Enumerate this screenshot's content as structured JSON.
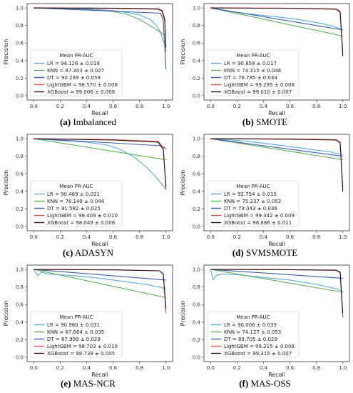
{
  "colors": {
    "LR": "#5aa9d6",
    "KNN": "#5cae5c",
    "DT": "#3b5ba5",
    "LightGBM": "#d9534f",
    "XGBoost": "#2a1010"
  },
  "chart_data": [
    {
      "type": "line",
      "caption_letter": "(a)",
      "caption_text": "Imbalanced",
      "xlabel": "Recall",
      "ylabel": "Precision",
      "xlim": [
        -0.05,
        1.05
      ],
      "ylim": [
        -0.05,
        1.05
      ],
      "xticks": [
        "0.0",
        "0.2",
        "0.4",
        "0.6",
        "0.8",
        "1.0"
      ],
      "yticks": [
        "0.0",
        "0.2",
        "0.4",
        "0.6",
        "0.8",
        "1.0"
      ],
      "legend_title": "Mean PR-AUC",
      "legend_position": "lower-left",
      "series": [
        {
          "name": "LR",
          "label": "LR = 94.126 ± 0.018",
          "x": [
            0,
            0.2,
            0.4,
            0.6,
            0.7,
            0.8,
            0.88,
            0.93,
            0.96,
            0.98,
            1.0
          ],
          "y": [
            1.0,
            0.995,
            0.99,
            0.97,
            0.95,
            0.92,
            0.87,
            0.8,
            0.72,
            0.62,
            0.55
          ]
        },
        {
          "name": "KNN",
          "label": "KNN = 87.303 ± 0.027",
          "x": [
            0,
            0.2,
            0.4,
            0.6,
            0.7,
            0.8,
            0.9,
            0.96,
            1.0
          ],
          "y": [
            1.0,
            0.99,
            0.98,
            0.96,
            0.93,
            0.87,
            0.78,
            0.72,
            0.68
          ]
        },
        {
          "name": "DT",
          "label": "DT = 90.239 ± 0.059",
          "x": [
            0,
            0.5,
            0.96,
            0.98,
            1.0
          ],
          "y": [
            1.0,
            0.97,
            0.94,
            0.85,
            0.3
          ]
        },
        {
          "name": "LightGBM",
          "label": "LightGBM = 98.570 ± 0.008",
          "x": [
            0,
            0.6,
            0.94,
            0.97,
            0.99,
            1.0
          ],
          "y": [
            1.0,
            0.995,
            0.985,
            0.96,
            0.85,
            0.5
          ]
        },
        {
          "name": "XGBoost",
          "label": "XGBoost = 99.006 ± 0.008",
          "x": [
            0,
            0.6,
            0.94,
            0.97,
            0.99,
            1.0
          ],
          "y": [
            1.0,
            0.998,
            0.99,
            0.97,
            0.88,
            0.55
          ]
        }
      ]
    },
    {
      "type": "line",
      "caption_letter": "(b)",
      "caption_text": "SMOTE",
      "xlabel": "Recall",
      "ylabel": "Precision",
      "xlim": [
        -0.05,
        1.05
      ],
      "ylim": [
        -0.05,
        1.05
      ],
      "xticks": [
        "0.0",
        "0.2",
        "0.4",
        "0.6",
        "0.8",
        "1.0"
      ],
      "yticks": [
        "0.0",
        "0.2",
        "0.4",
        "0.6",
        "0.8",
        "1.0"
      ],
      "legend_title": "Mean PR-AUC",
      "legend_position": "lower-left",
      "series": [
        {
          "name": "LR",
          "label": "LR = 90.858 ± 0.017",
          "x": [
            0,
            0.1,
            0.3,
            0.5,
            0.7,
            0.85,
            0.95,
            1.0
          ],
          "y": [
            1.0,
            0.97,
            0.93,
            0.9,
            0.86,
            0.82,
            0.78,
            0.75
          ]
        },
        {
          "name": "KNN",
          "label": "KNN = 74.315 ± 0.048",
          "x": [
            0,
            1.0
          ],
          "y": [
            1.0,
            0.68
          ]
        },
        {
          "name": "DT",
          "label": "DT = 76.785 ± 0.034",
          "x": [
            0,
            1.0
          ],
          "y": [
            1.0,
            0.75
          ]
        },
        {
          "name": "LightGBM",
          "label": "LightGBM = 99.295 ± 0.008",
          "x": [
            0,
            0.6,
            0.95,
            0.98,
            1.0
          ],
          "y": [
            1.0,
            0.998,
            0.99,
            0.96,
            0.5
          ]
        },
        {
          "name": "XGBoost",
          "label": "XGBoost = 99.010 ± 0.007",
          "x": [
            0,
            0.6,
            0.95,
            0.98,
            1.0
          ],
          "y": [
            1.0,
            0.996,
            0.985,
            0.95,
            0.45
          ]
        }
      ]
    },
    {
      "type": "line",
      "caption_letter": "(c)",
      "caption_text": "ADASYN",
      "xlabel": "Recall",
      "ylabel": "Precision",
      "xlim": [
        -0.05,
        1.05
      ],
      "ylim": [
        -0.05,
        1.05
      ],
      "xticks": [
        "0.0",
        "0.2",
        "0.4",
        "0.6",
        "0.8",
        "1.0"
      ],
      "yticks": [
        "0.0",
        "0.2",
        "0.4",
        "0.6",
        "0.8",
        "1.0"
      ],
      "legend_title": "Mean PR-AUC",
      "legend_position": "lower-left",
      "series": [
        {
          "name": "LR",
          "label": "LR = 90.469 ± 0.021",
          "x": [
            0,
            0.2,
            0.4,
            0.55,
            0.65,
            0.75,
            0.85,
            0.92,
            0.97,
            1.0
          ],
          "y": [
            1.0,
            0.98,
            0.96,
            0.93,
            0.88,
            0.8,
            0.68,
            0.57,
            0.48,
            0.42
          ]
        },
        {
          "name": "KNN",
          "label": "KNN = 76.149 ± 0.044",
          "x": [
            0,
            1.0
          ],
          "y": [
            1.0,
            0.76
          ]
        },
        {
          "name": "DT",
          "label": "DT = 91.582 ± 0.025",
          "x": [
            0,
            0.5,
            0.96,
            0.99,
            1.0
          ],
          "y": [
            1.0,
            0.96,
            0.92,
            0.9,
            0.88
          ]
        },
        {
          "name": "LightGBM",
          "label": "LightGBM = 98.409 ± 0.010",
          "x": [
            0,
            0.6,
            0.94,
            0.98,
            1.0
          ],
          "y": [
            1.0,
            0.99,
            0.97,
            0.9,
            0.42
          ]
        },
        {
          "name": "XGBoost",
          "label": "XGBoost = 98.049 ± 0.008",
          "x": [
            0,
            0.6,
            0.94,
            0.98,
            1.0
          ],
          "y": [
            1.0,
            0.985,
            0.96,
            0.88,
            0.45
          ]
        }
      ]
    },
    {
      "type": "line",
      "caption_letter": "(d)",
      "caption_text": "SVMSMOTE",
      "xlabel": "Recall",
      "ylabel": "Precision",
      "xlim": [
        -0.05,
        1.05
      ],
      "ylim": [
        -0.05,
        1.05
      ],
      "xticks": [
        "0.0",
        "0.2",
        "0.4",
        "0.6",
        "0.8",
        "1.0"
      ],
      "yticks": [
        "0.0",
        "0.2",
        "0.4",
        "0.6",
        "0.8",
        "1.0"
      ],
      "legend_title": "Mean PR-AUC",
      "legend_position": "lower-left",
      "series": [
        {
          "name": "LR",
          "label": "LR = 92.754 ± 0.015",
          "x": [
            0,
            0.2,
            0.4,
            0.6,
            0.8,
            0.9,
            0.96,
            1.0
          ],
          "y": [
            1.0,
            0.98,
            0.95,
            0.91,
            0.87,
            0.85,
            0.83,
            0.82
          ]
        },
        {
          "name": "KNN",
          "label": "KNN = 75.237 ± 0.052",
          "x": [
            0,
            1.0
          ],
          "y": [
            1.0,
            0.76
          ]
        },
        {
          "name": "DT",
          "label": "DT = 79.043 ± 0.038",
          "x": [
            0,
            1.0
          ],
          "y": [
            1.0,
            0.8
          ]
        },
        {
          "name": "LightGBM",
          "label": "LightGBM = 99.342 ± 0.009",
          "x": [
            0,
            0.6,
            0.95,
            0.98,
            1.0
          ],
          "y": [
            1.0,
            0.998,
            0.99,
            0.96,
            0.45
          ]
        },
        {
          "name": "XGBoost",
          "label": "XGBoost = 98.886 ± 0.011",
          "x": [
            0,
            0.6,
            0.95,
            0.98,
            1.0
          ],
          "y": [
            1.0,
            0.995,
            0.985,
            0.95,
            0.4
          ]
        }
      ]
    },
    {
      "type": "line",
      "caption_letter": "(e)",
      "caption_text": "MAS-NCR",
      "xlabel": "Recall",
      "ylabel": "Precision",
      "xlim": [
        -0.05,
        1.05
      ],
      "ylim": [
        -0.05,
        1.05
      ],
      "xticks": [
        "0.0",
        "0.2",
        "0.4",
        "0.6",
        "0.8",
        "1.0"
      ],
      "yticks": [
        "0.0",
        "0.2",
        "0.4",
        "0.6",
        "0.8",
        "1.0"
      ],
      "legend_title": "Mean PR-AUC",
      "legend_position": "lower-left",
      "series": [
        {
          "name": "LR",
          "label": "LR = 90.980 ± 0.031",
          "x": [
            0,
            0.03,
            0.06,
            0.1,
            0.3,
            0.5,
            0.7,
            0.85,
            0.95,
            1.0
          ],
          "y": [
            1.0,
            0.93,
            0.97,
            0.95,
            0.93,
            0.9,
            0.86,
            0.83,
            0.8,
            0.78
          ]
        },
        {
          "name": "KNN",
          "label": "KNN = 67.664 ± 0.035",
          "x": [
            0,
            1.0
          ],
          "y": [
            1.0,
            0.68
          ]
        },
        {
          "name": "DT",
          "label": "DT = 87.999 ± 0.029",
          "x": [
            0,
            1.0
          ],
          "y": [
            1.0,
            0.88
          ]
        },
        {
          "name": "LightGBM",
          "label": "LightGBM = 98.703 ± 0.010",
          "x": [
            0,
            0.6,
            0.95,
            0.98,
            1.0
          ],
          "y": [
            1.0,
            0.995,
            0.985,
            0.95,
            0.5
          ]
        },
        {
          "name": "XGBoost",
          "label": "XGBoost = 98.738 ± 0.005",
          "x": [
            0,
            0.6,
            0.95,
            0.98,
            1.0
          ],
          "y": [
            1.0,
            0.996,
            0.985,
            0.95,
            0.55
          ]
        }
      ]
    },
    {
      "type": "line",
      "caption_letter": "(f)",
      "caption_text": "MAS-OSS",
      "xlabel": "Recall",
      "ylabel": "Precision",
      "xlim": [
        -0.05,
        1.05
      ],
      "ylim": [
        -0.05,
        1.05
      ],
      "xticks": [
        "0.0",
        "0.2",
        "0.4",
        "0.6",
        "0.8",
        "1.0"
      ],
      "yticks": [
        "0.0",
        "0.2",
        "0.4",
        "0.6",
        "0.8",
        "1.0"
      ],
      "legend_title": "Mean PR-AUC",
      "legend_position": "lower-left",
      "series": [
        {
          "name": "LR",
          "label": "LR = 90.006 ± 0.033",
          "x": [
            0,
            0.02,
            0.04,
            0.08,
            0.2,
            0.4,
            0.6,
            0.8,
            0.95,
            1.0
          ],
          "y": [
            1.0,
            0.88,
            0.93,
            0.95,
            0.94,
            0.91,
            0.88,
            0.83,
            0.78,
            0.75
          ]
        },
        {
          "name": "KNN",
          "label": "KNN = 74.127 ± 0.053",
          "x": [
            0,
            1.0
          ],
          "y": [
            1.0,
            0.74
          ]
        },
        {
          "name": "DT",
          "label": "DT = 89.705 ± 0.029",
          "x": [
            0,
            1.0
          ],
          "y": [
            1.0,
            0.9
          ]
        },
        {
          "name": "LightGBM",
          "label": "LightGBM = 99.215 ± 0.008",
          "x": [
            0,
            0.6,
            0.95,
            0.98,
            1.0
          ],
          "y": [
            1.0,
            0.998,
            0.99,
            0.96,
            0.45
          ]
        },
        {
          "name": "XGBoost",
          "label": "XGBoost = 99.315 ± 0.007",
          "x": [
            0,
            0.6,
            0.95,
            0.98,
            1.0
          ],
          "y": [
            1.0,
            0.998,
            0.992,
            0.97,
            0.5
          ]
        }
      ]
    }
  ]
}
